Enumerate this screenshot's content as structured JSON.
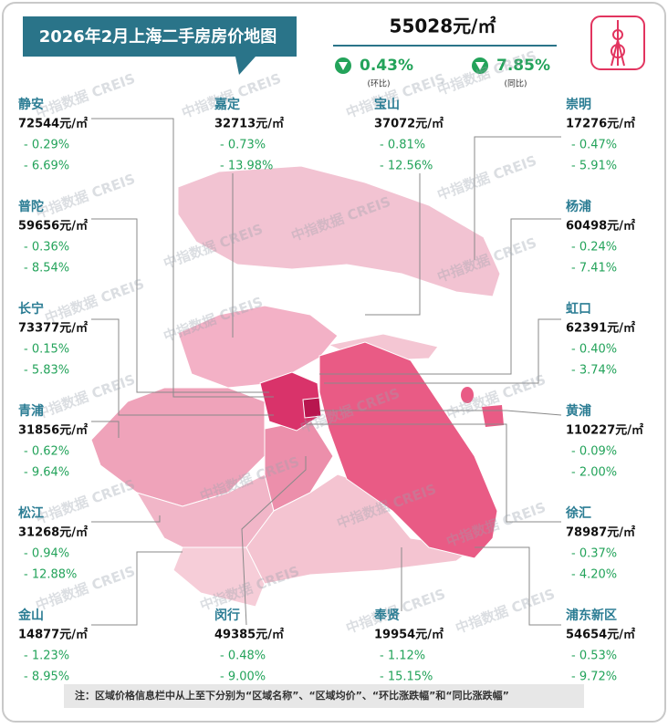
{
  "header": {
    "title": "2026年2月上海二手房房价地图",
    "price": "55028元/㎡",
    "mom": {
      "value": "0.43%",
      "label": "(环比)"
    },
    "yoy": {
      "value": "7.85%",
      "label": "(同比)"
    }
  },
  "watermark": "中指数据 CREIS",
  "districts": [
    {
      "name": "静安",
      "price": "72544元/㎡",
      "mom": "- 0.29%",
      "yoy": "- 6.69%"
    },
    {
      "name": "普陀",
      "price": "59656元/㎡",
      "mom": "- 0.36%",
      "yoy": "- 8.54%"
    },
    {
      "name": "长宁",
      "price": "73377元/㎡",
      "mom": "- 0.15%",
      "yoy": "- 5.83%"
    },
    {
      "name": "青浦",
      "price": "31856元/㎡",
      "mom": "- 0.62%",
      "yoy": "- 9.64%"
    },
    {
      "name": "松江",
      "price": "31268元/㎡",
      "mom": "- 0.94%",
      "yoy": "- 12.88%"
    },
    {
      "name": "金山",
      "price": "14877元/㎡",
      "mom": "- 1.23%",
      "yoy": "- 8.95%"
    },
    {
      "name": "嘉定",
      "price": "32713元/㎡",
      "mom": "- 0.73%",
      "yoy": "- 13.98%"
    },
    {
      "name": "宝山",
      "price": "37072元/㎡",
      "mom": "- 0.81%",
      "yoy": "- 12.56%"
    },
    {
      "name": "闵行",
      "price": "49385元/㎡",
      "mom": "- 0.48%",
      "yoy": "- 9.00%"
    },
    {
      "name": "奉贤",
      "price": "19954元/㎡",
      "mom": "- 1.12%",
      "yoy": "- 15.15%"
    },
    {
      "name": "崇明",
      "price": "17276元/㎡",
      "mom": "- 0.47%",
      "yoy": "- 5.91%"
    },
    {
      "name": "杨浦",
      "price": "60498元/㎡",
      "mom": "- 0.24%",
      "yoy": "- 7.41%"
    },
    {
      "name": "虹口",
      "price": "62391元/㎡",
      "mom": "- 0.40%",
      "yoy": "- 3.74%"
    },
    {
      "name": "黄浦",
      "price": "110227元/㎡",
      "mom": "- 0.09%",
      "yoy": "- 2.00%"
    },
    {
      "name": "徐汇",
      "price": "78987元/㎡",
      "mom": "- 0.37%",
      "yoy": "- 4.20%"
    },
    {
      "name": "浦东新区",
      "price": "54654元/㎡",
      "mom": "- 0.53%",
      "yoy": "- 9.72%"
    }
  ],
  "note": "注：区域价格信息栏中从上至下分别为“区域名称”、“区域均价”、“环比涨跌幅”和“同比涨跌幅”"
}
